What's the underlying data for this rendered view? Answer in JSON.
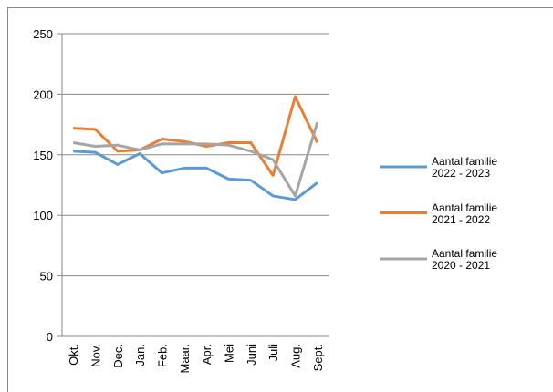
{
  "chart_data": {
    "type": "line",
    "categories": [
      "Okt.",
      "Nov.",
      "Dec.",
      "Jan.",
      "Feb.",
      "Maar.",
      "Apr.",
      "Mei",
      "Juni",
      "Juli",
      "Aug.",
      "Sept."
    ],
    "series": [
      {
        "name": "Aantal familie 2022 - 2023",
        "color": "#5b9bd5",
        "values": [
          153,
          152,
          142,
          151,
          135,
          139,
          139,
          130,
          129,
          116,
          113,
          127
        ]
      },
      {
        "name": "Aantal familie 2021 - 2022",
        "color": "#ed7d31",
        "values": [
          172,
          171,
          153,
          154,
          163,
          161,
          157,
          160,
          160,
          133,
          198,
          160
        ]
      },
      {
        "name": "Aantal familie 2020 - 2021",
        "color": "#a5a5a5",
        "values": [
          160,
          157,
          158,
          154,
          159,
          159,
          159,
          158,
          153,
          146,
          116,
          177
        ]
      }
    ],
    "ylim": [
      0,
      250
    ],
    "yticks": [
      0,
      50,
      100,
      150,
      200,
      250
    ],
    "grid": true,
    "legend": "right"
  }
}
